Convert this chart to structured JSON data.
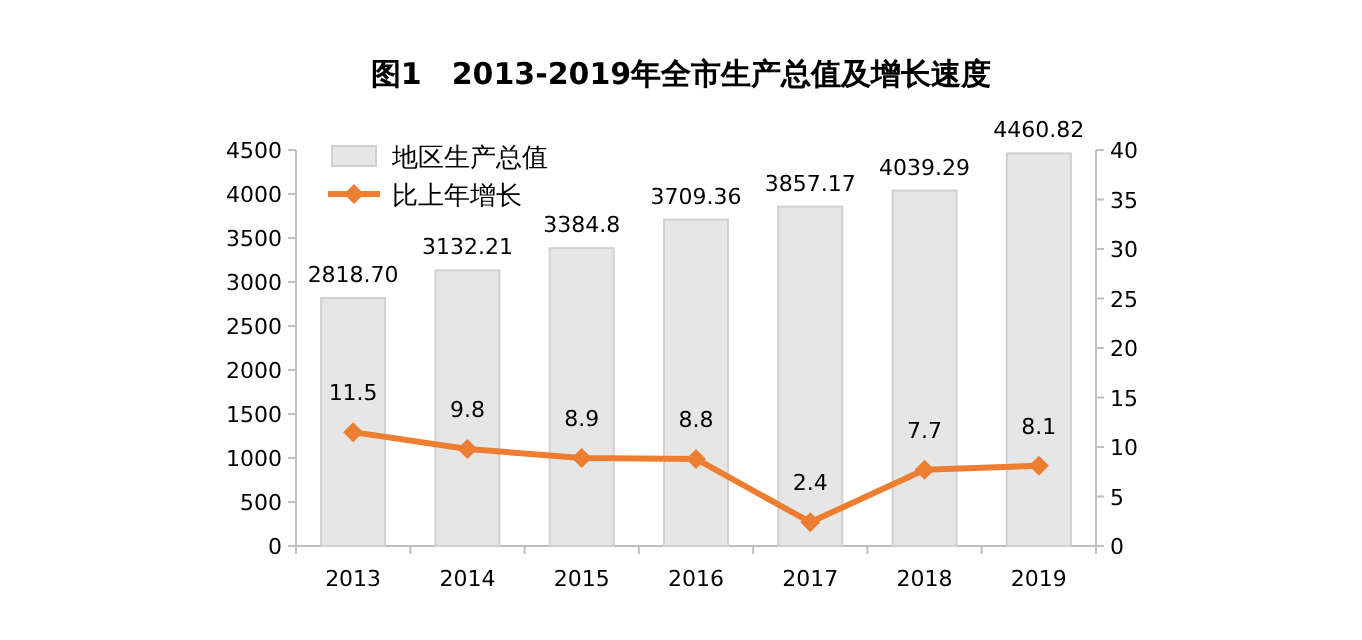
{
  "chart_data": {
    "type": "bar",
    "title": "图1　2013-2019年全市生产总值及增长速度",
    "categories": [
      "2013",
      "2014",
      "2015",
      "2016",
      "2017",
      "2018",
      "2019"
    ],
    "series": [
      {
        "name": "地区生产总值",
        "color": "#e6e6e6",
        "values": [
          2818.7,
          3132.21,
          3384.8,
          3709.36,
          3857.17,
          4039.29,
          4460.82
        ],
        "value_labels": [
          "2818.70",
          "3132.21",
          "3384.8",
          "3709.36",
          "3857.17",
          "4039.29",
          "4460.82"
        ]
      },
      {
        "name": "比上年增长",
        "type": "line",
        "axis": "y2",
        "color": "#ed7d31",
        "marker": "diamond",
        "values": [
          11.5,
          9.8,
          8.9,
          8.8,
          2.4,
          7.7,
          8.1
        ],
        "value_labels": [
          "11.5",
          "9.8",
          "8.9",
          "8.8",
          "2.4",
          "7.7",
          "8.1"
        ]
      }
    ],
    "ylim": [
      0,
      4500
    ],
    "yticks": [
      0,
      500,
      1000,
      1500,
      2000,
      2500,
      3000,
      3500,
      4000,
      4500
    ],
    "y2lim": [
      0,
      40
    ],
    "y2ticks": [
      0,
      5,
      10,
      15,
      20,
      25,
      30,
      35,
      40
    ],
    "legend": "top left",
    "grid": false
  }
}
